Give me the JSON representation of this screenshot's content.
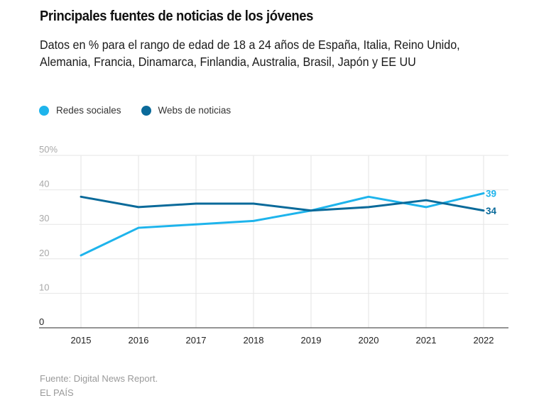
{
  "header": {
    "title": "Principales fuentes de noticias de los jóvenes",
    "subtitle": "Datos en % para el rango de edad de 18 a 24 años de España, Italia, Reino Unido, Alemania, Francia, Dinamarca, Finlandia, Australia, Brasil, Japón y EE UU"
  },
  "legend": [
    {
      "label": "Redes sociales",
      "color": "#1eb4ec"
    },
    {
      "label": "Webs de noticias",
      "color": "#0a6a9a"
    }
  ],
  "footer": {
    "source": "Fuente: Digital News Report.",
    "publisher": "EL PAÍS"
  },
  "chart_data": {
    "type": "line",
    "title": "Principales fuentes de noticias de los jóvenes",
    "xlabel": "",
    "ylabel": "",
    "x": [
      "2015",
      "2016",
      "2017",
      "2018",
      "2019",
      "2020",
      "2021",
      "2022"
    ],
    "ylim": [
      0,
      50
    ],
    "yticks": [
      0,
      10,
      20,
      30,
      40,
      50
    ],
    "ytick_labels": [
      "0",
      "10",
      "20",
      "30",
      "40",
      "50%"
    ],
    "grid": true,
    "legend_position": "top-left",
    "series": [
      {
        "name": "Redes sociales",
        "color": "#1eb4ec",
        "values": [
          21,
          29,
          30,
          31,
          34,
          38,
          35,
          39
        ],
        "end_label": "39"
      },
      {
        "name": "Webs de noticias",
        "color": "#0a6a9a",
        "values": [
          38,
          35,
          36,
          36,
          34,
          35,
          37,
          34
        ],
        "end_label": "34"
      }
    ]
  }
}
